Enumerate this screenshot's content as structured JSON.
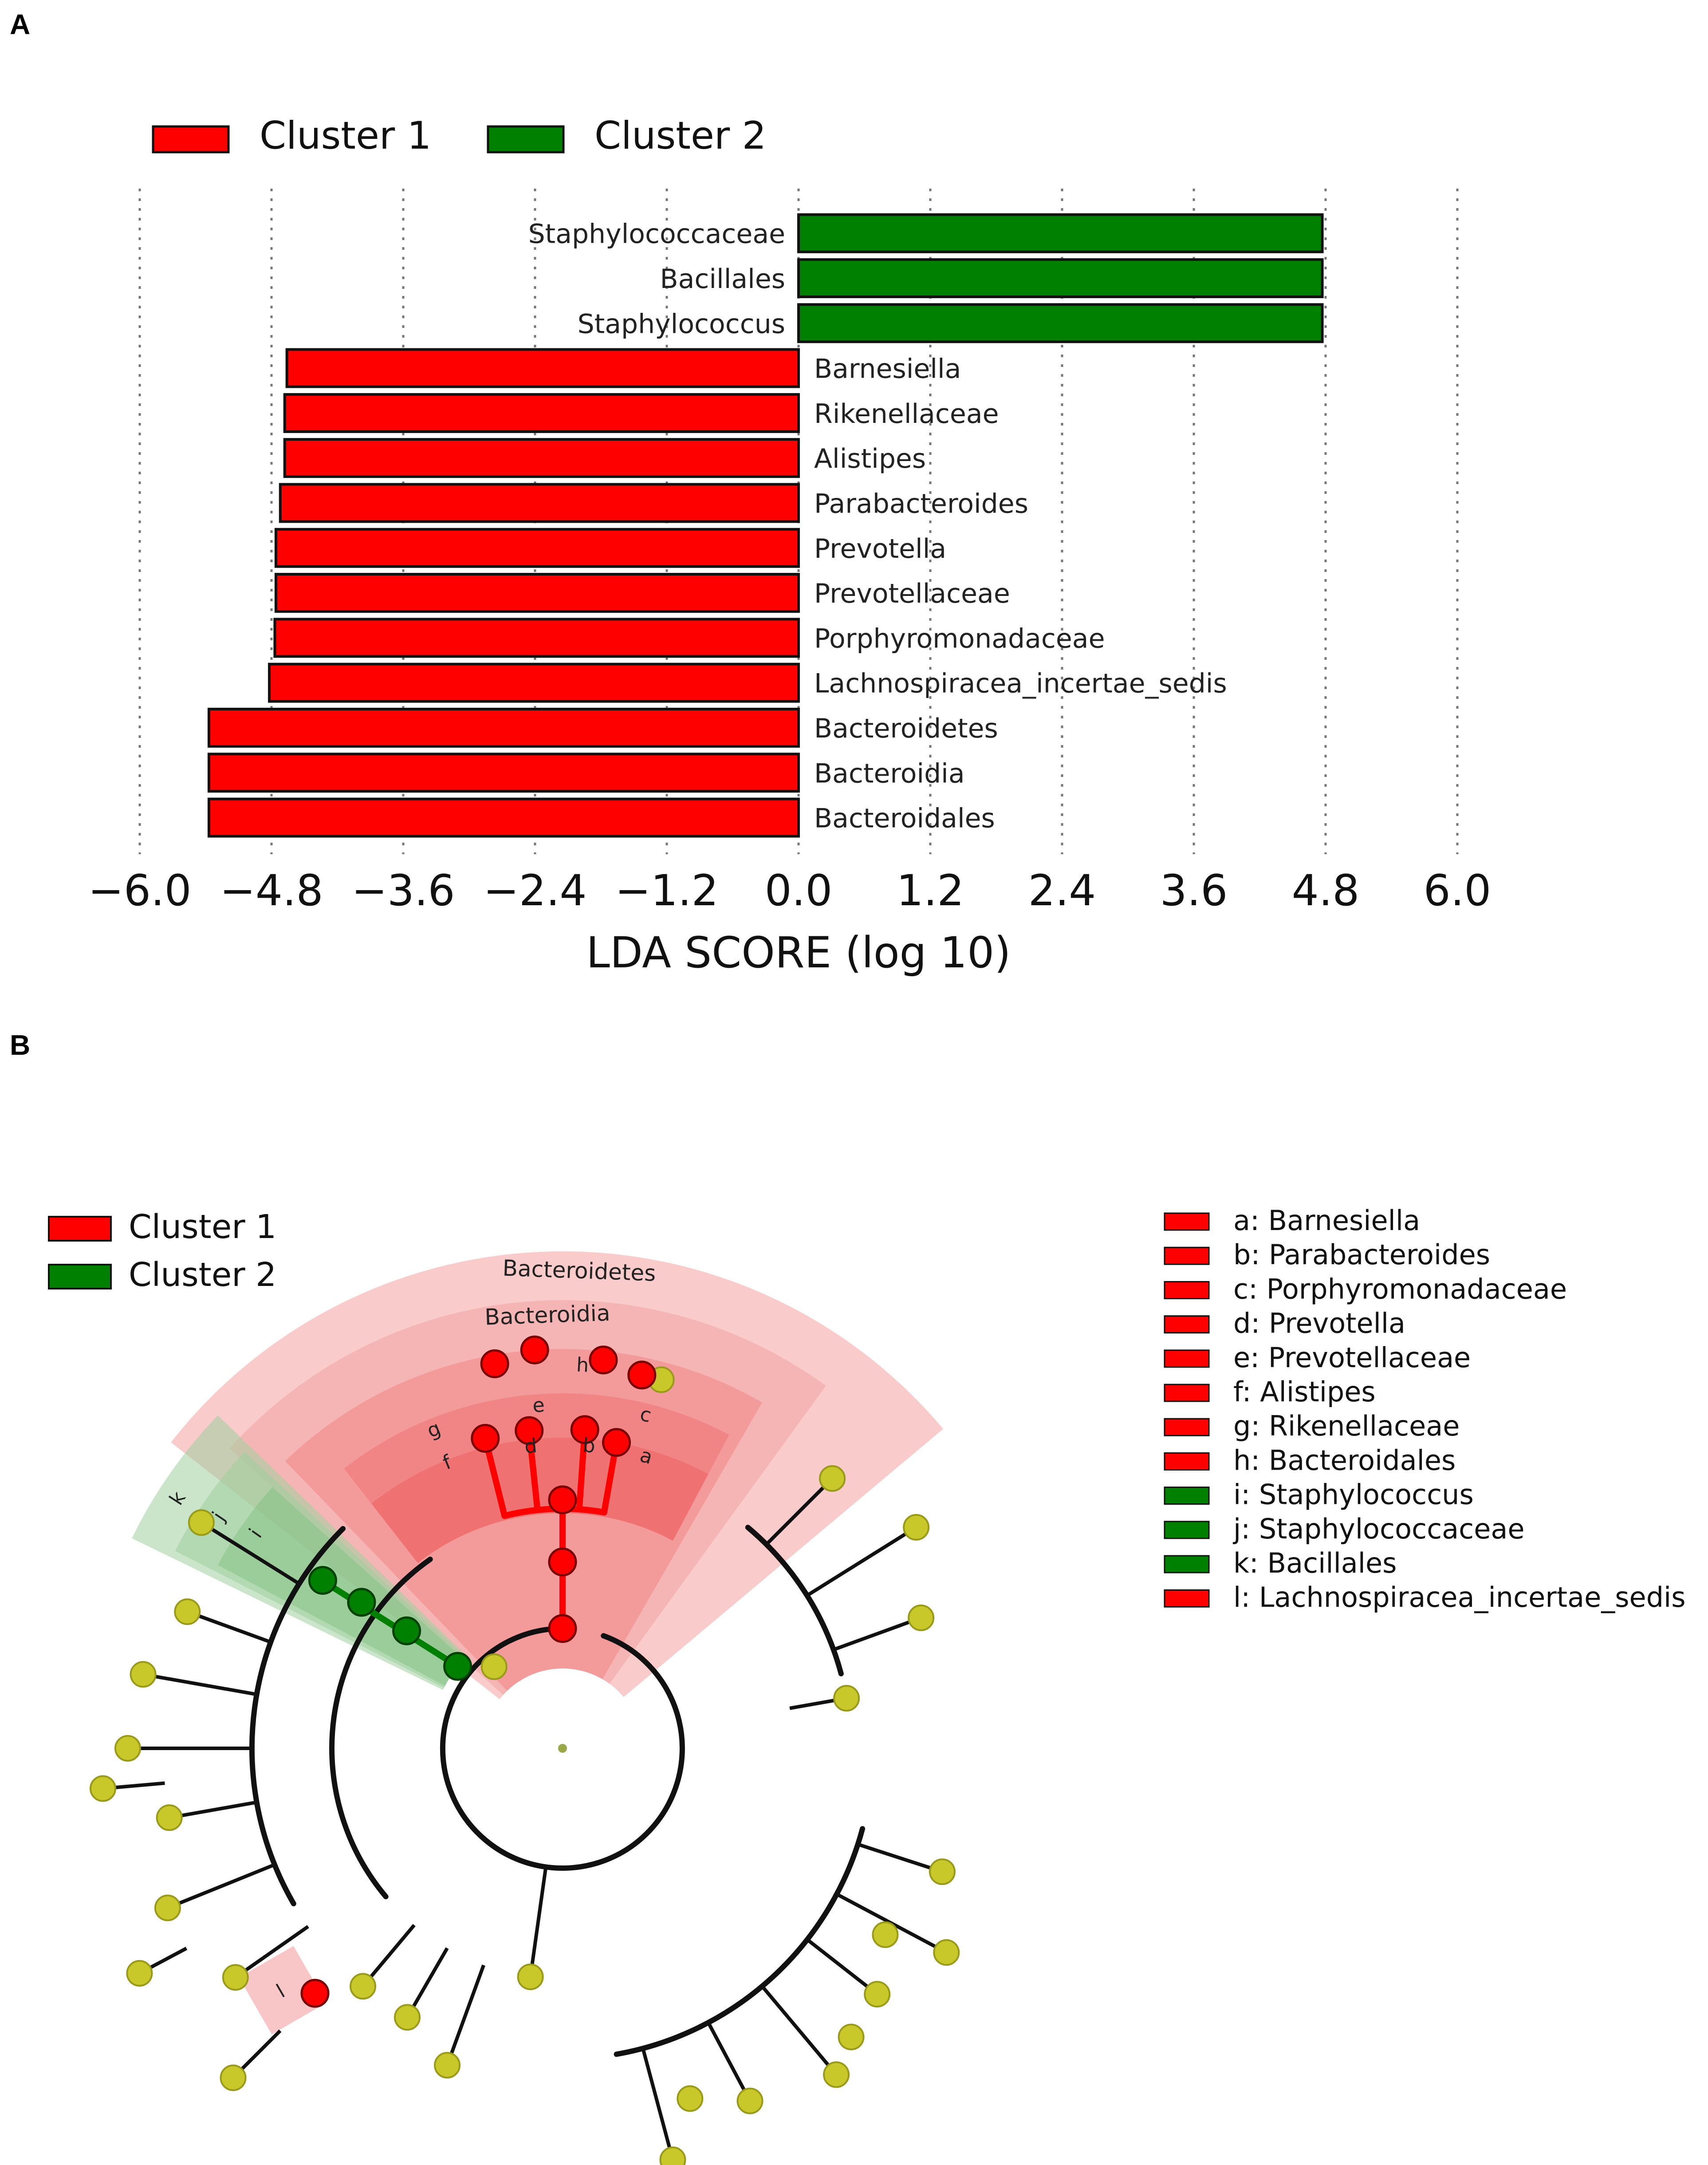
{
  "panels": {
    "a_label": "A",
    "b_label": "B"
  },
  "colors": {
    "cluster1": "#ff0000",
    "cluster2": "#008000",
    "node": "#c8c82a",
    "cluster1_light": "#f4a0a0",
    "cluster2_light": "#9fd09f"
  },
  "chart_data": [
    {
      "type": "bar",
      "orientation": "horizontal",
      "title": "",
      "xlabel": "LDA SCORE (log 10)",
      "xlim": [
        -6.0,
        6.0
      ],
      "ticks": [
        -6.0,
        -4.8,
        -3.6,
        -2.4,
        -1.2,
        0.0,
        1.2,
        2.4,
        3.6,
        4.8,
        6.0
      ],
      "tick_labels": [
        "−6.0",
        "−4.8",
        "−3.6",
        "−2.4",
        "−1.2",
        "0.0",
        "1.2",
        "2.4",
        "3.6",
        "4.8",
        "6.0"
      ],
      "grid": true,
      "legend": [
        {
          "name": "Cluster 1",
          "color": "#ff0000"
        },
        {
          "name": "Cluster 2",
          "color": "#008000"
        }
      ],
      "legend_position": "top-left",
      "bars": [
        {
          "label": "Staphylococcaceae",
          "value": 4.77,
          "cluster": 2
        },
        {
          "label": "Bacillales",
          "value": 4.77,
          "cluster": 2
        },
        {
          "label": "Staphylococcus",
          "value": 4.77,
          "cluster": 2
        },
        {
          "label": "Barnesiella",
          "value": -4.66,
          "cluster": 1
        },
        {
          "label": "Rikenellaceae",
          "value": -4.68,
          "cluster": 1
        },
        {
          "label": "Alistipes",
          "value": -4.68,
          "cluster": 1
        },
        {
          "label": "Parabacteroides",
          "value": -4.72,
          "cluster": 1
        },
        {
          "label": "Prevotella",
          "value": -4.76,
          "cluster": 1
        },
        {
          "label": "Prevotellaceae",
          "value": -4.76,
          "cluster": 1
        },
        {
          "label": "Porphyromonadaceae",
          "value": -4.77,
          "cluster": 1
        },
        {
          "label": "Lachnospiracea_incertae_sedis",
          "value": -4.82,
          "cluster": 1
        },
        {
          "label": "Bacteroidetes",
          "value": -5.37,
          "cluster": 1
        },
        {
          "label": "Bacteroidia",
          "value": -5.37,
          "cluster": 1
        },
        {
          "label": "Bacteroidales",
          "value": -5.37,
          "cluster": 1
        }
      ]
    },
    {
      "type": "cladogram",
      "legend_clusters": [
        {
          "name": "Cluster 1",
          "color": "#ff0000"
        },
        {
          "name": "Cluster 2",
          "color": "#008000"
        }
      ],
      "ring_labels": [
        "Bacteroidetes",
        "Bacteroidia",
        "h",
        "g",
        "e",
        "c",
        "f",
        "d",
        "b",
        "a",
        "k",
        "j",
        "i",
        "l"
      ],
      "taxa": [
        {
          "text": "a: Barnesiella",
          "cluster": 1
        },
        {
          "text": "b: Parabacteroides",
          "cluster": 1
        },
        {
          "text": "c: Porphyromonadaceae",
          "cluster": 1
        },
        {
          "text": "d: Prevotella",
          "cluster": 1
        },
        {
          "text": "e: Prevotellaceae",
          "cluster": 1
        },
        {
          "text": "f: Alistipes",
          "cluster": 1
        },
        {
          "text": "g: Rikenellaceae",
          "cluster": 1
        },
        {
          "text": "h: Bacteroidales",
          "cluster": 1
        },
        {
          "text": "i: Staphylococcus",
          "cluster": 2
        },
        {
          "text": "j: Staphylococcaceae",
          "cluster": 2
        },
        {
          "text": "k: Bacillales",
          "cluster": 2
        },
        {
          "text": "l: Lachnospiracea_incertae_sedis",
          "cluster": 1
        }
      ]
    }
  ]
}
